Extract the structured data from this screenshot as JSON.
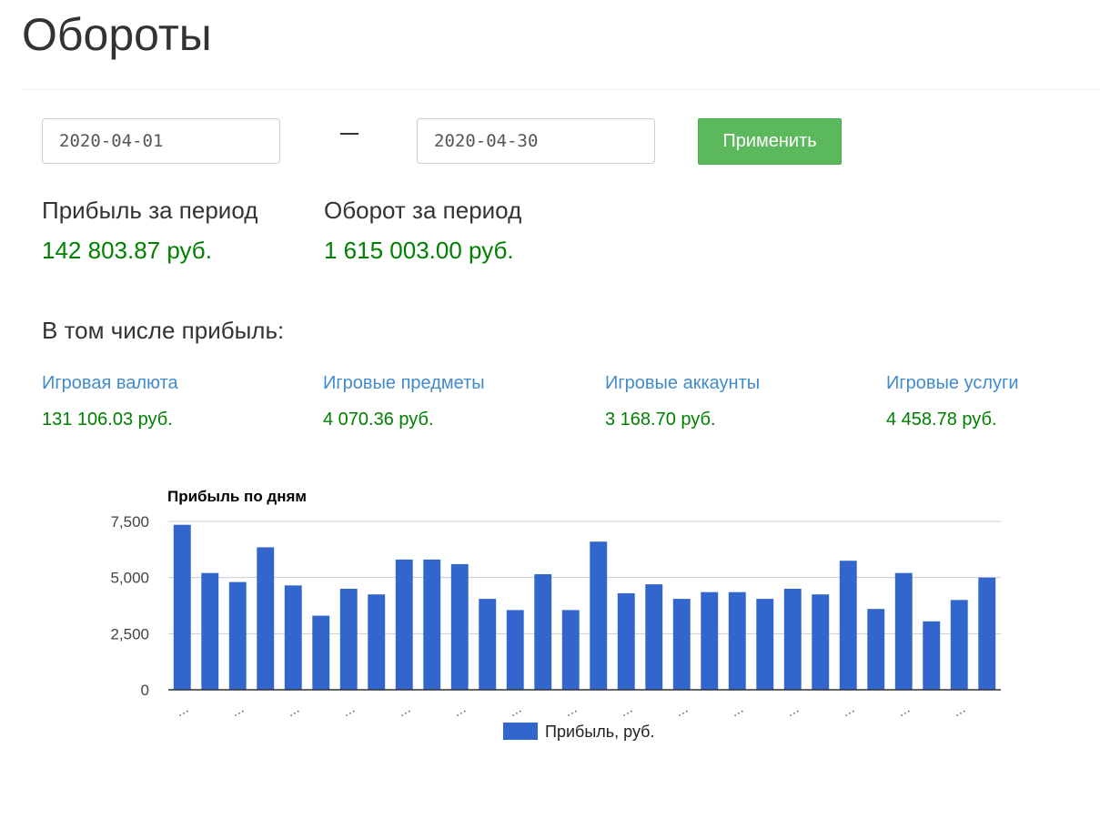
{
  "header": {
    "title": "Обороты"
  },
  "filters": {
    "date_from": "2020-04-01",
    "date_to": "2020-04-30",
    "separator": "–",
    "apply_label": "Применить"
  },
  "summary": {
    "profit_label": "Прибыль за период",
    "profit_value": "142 803.87 руб.",
    "turnover_label": "Оборот за период",
    "turnover_value": "1 615 003.00 руб."
  },
  "breakdown": {
    "heading": "В том числе прибыль:",
    "items": [
      {
        "label": "Игровая валюта",
        "value": "131 106.03 руб."
      },
      {
        "label": "Игровые предметы",
        "value": "4 070.36 руб."
      },
      {
        "label": "Игровые аккаунты",
        "value": "3 168.70 руб."
      },
      {
        "label": "Игровые услуги",
        "value": "4 458.78 руб."
      }
    ]
  },
  "colors": {
    "accent_green": "#5cb85c",
    "value_green": "#008000",
    "link_blue": "#428bca",
    "bar_blue": "#3366cc"
  },
  "chart_data": {
    "type": "bar",
    "title": "Прибыль по дням",
    "ylim": [
      0,
      7500
    ],
    "yticks": [
      "0",
      "2,500",
      "5,000",
      "7,500"
    ],
    "x_tick_label": "…",
    "legend": "top-center-bottom",
    "series": [
      {
        "name": "Прибыль, руб.",
        "values": [
          7350,
          5200,
          4800,
          6350,
          4650,
          3300,
          4500,
          4250,
          5800,
          5800,
          5600,
          4050,
          3550,
          5150,
          3550,
          6600,
          4300,
          4700,
          4050,
          4350,
          4350,
          4050,
          4500,
          4250,
          5750,
          3600,
          5200,
          3050,
          4000,
          5000
        ]
      }
    ]
  }
}
